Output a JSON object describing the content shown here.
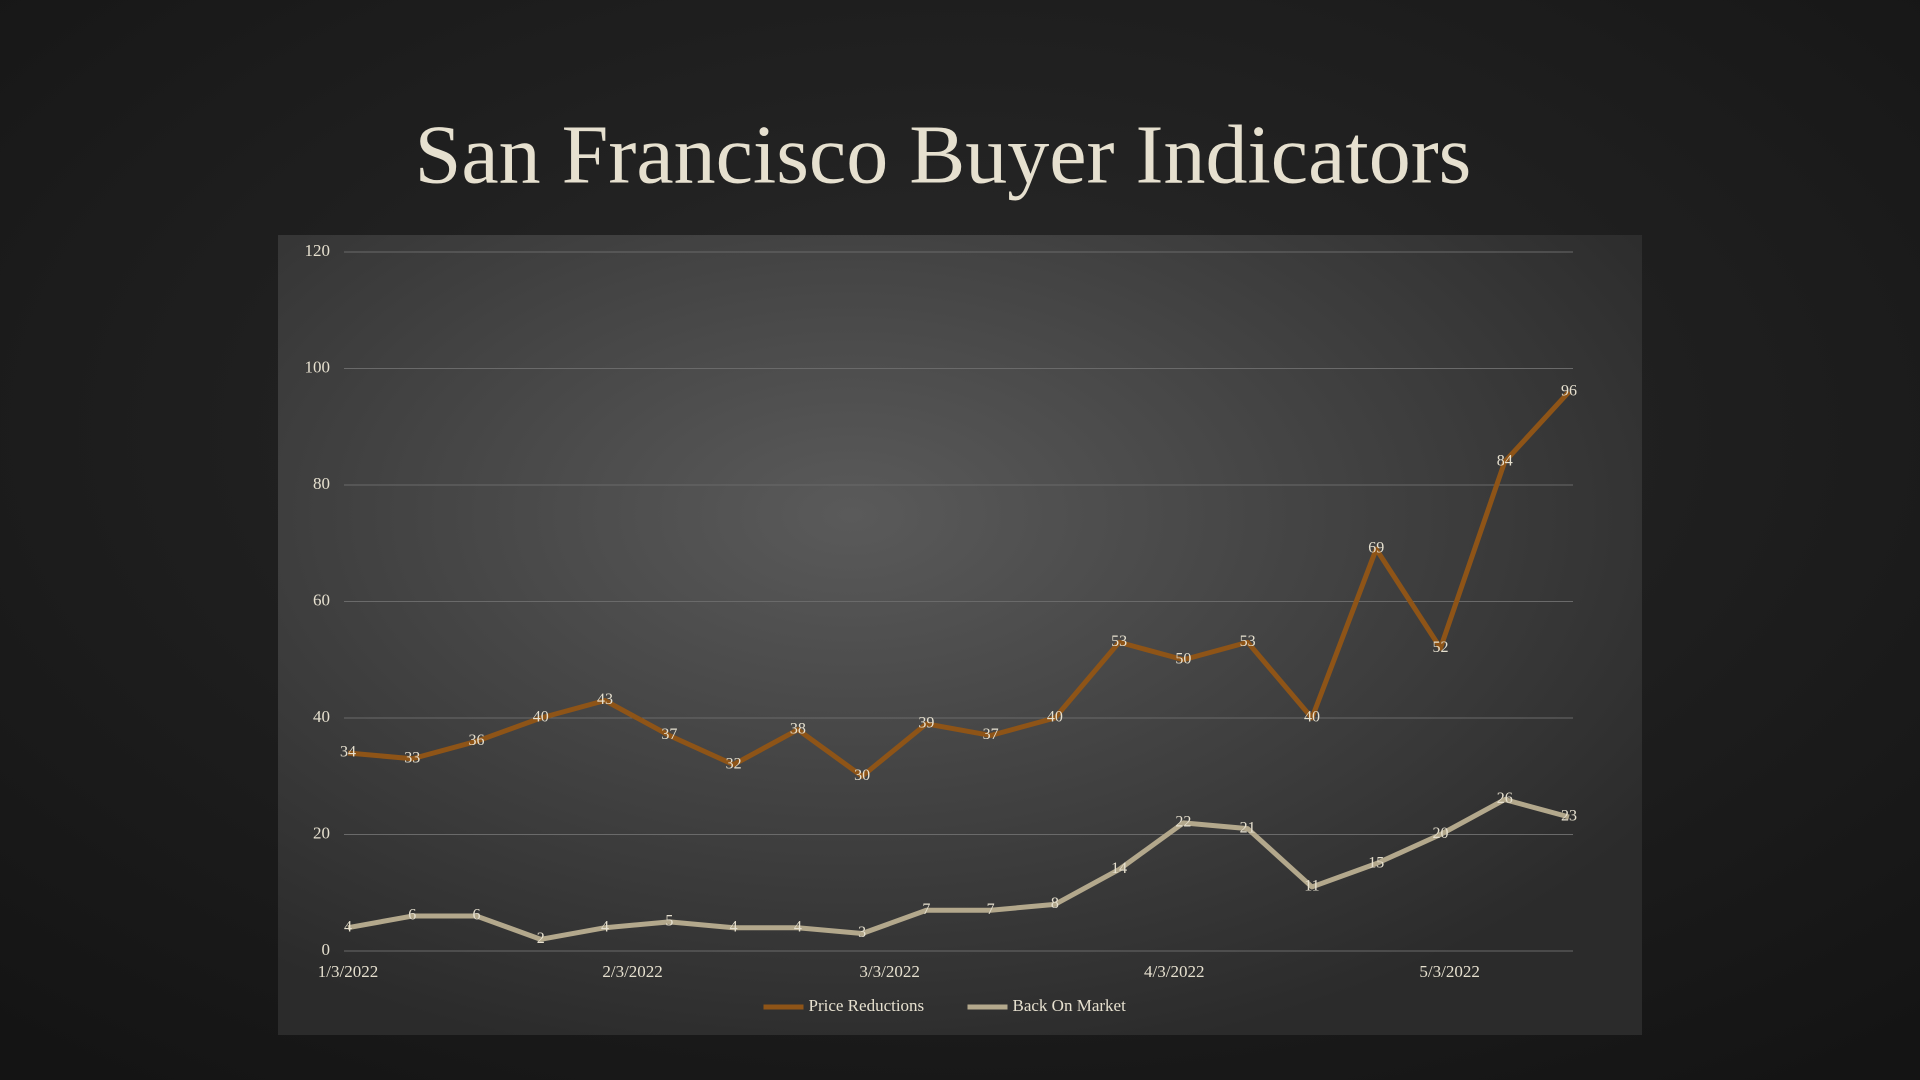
{
  "chart_data": {
    "type": "line",
    "title": "San Francisco Buyer Indicators",
    "x": [
      "2022-01-03",
      "2022-01-10",
      "2022-01-17",
      "2022-01-24",
      "2022-01-31",
      "2022-02-07",
      "2022-02-14",
      "2022-02-21",
      "2022-02-28",
      "2022-03-07",
      "2022-03-14",
      "2022-03-21",
      "2022-03-28",
      "2022-04-04",
      "2022-04-11",
      "2022-04-18",
      "2022-04-25",
      "2022-05-02",
      "2022-05-09",
      "2022-05-16"
    ],
    "series": [
      {
        "name": "Price Reductions",
        "color": "#8e5417",
        "values": [
          34,
          33,
          36,
          40,
          43,
          37,
          32,
          38,
          30,
          39,
          37,
          40,
          53,
          50,
          53,
          40,
          69,
          52,
          84,
          96
        ]
      },
      {
        "name": "Back On Market",
        "color": "#b3a88c",
        "values": [
          4,
          6,
          6,
          2,
          4,
          5,
          4,
          4,
          3,
          7,
          7,
          8,
          14,
          22,
          21,
          11,
          15,
          20,
          26,
          23
        ]
      }
    ],
    "xlim": [
      "2022-01-03",
      "2022-05-16"
    ],
    "xticks": [
      {
        "value": "2022-01-03",
        "label": "1/3/2022"
      },
      {
        "value": "2022-02-03",
        "label": "2/3/2022"
      },
      {
        "value": "2022-03-03",
        "label": "3/3/2022"
      },
      {
        "value": "2022-04-03",
        "label": "4/3/2022"
      },
      {
        "value": "2022-05-03",
        "label": "5/3/2022"
      }
    ],
    "ylim": [
      0,
      120
    ],
    "yticks": [
      0,
      20,
      40,
      60,
      80,
      100,
      120
    ],
    "grid": true,
    "data_labels": true,
    "legend": "bottom"
  }
}
